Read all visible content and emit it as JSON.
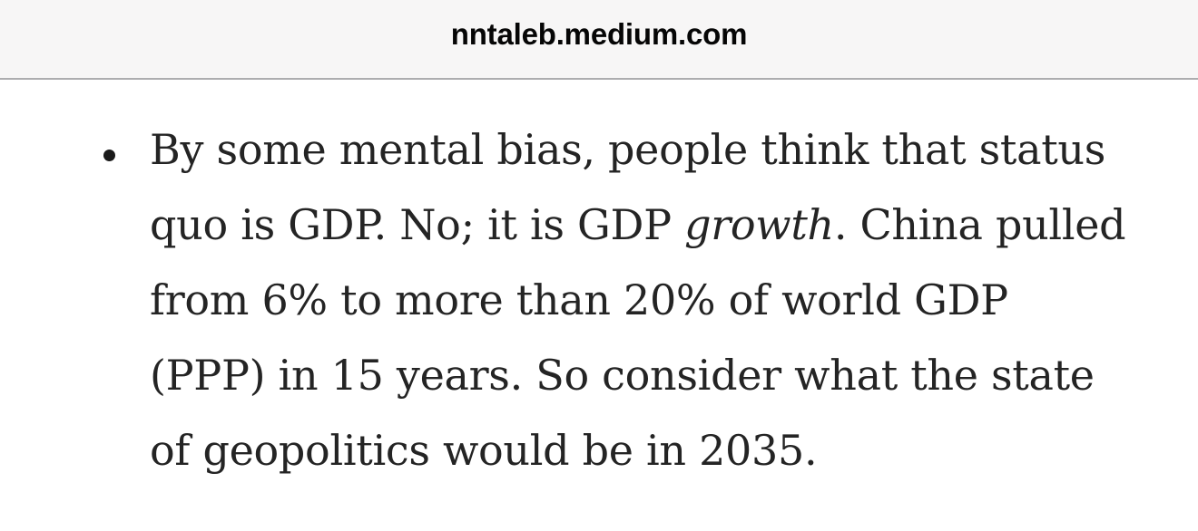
{
  "browser": {
    "url_bar": {
      "domain": "nntaleb.medium.com"
    }
  },
  "content": {
    "bullet_item": {
      "full_text": "By some mental bias, people think that status quo is GDP. No; it is GDP growth. China pulled from 6% to more than 20% of world GDP (PPP) in 15 years. So consider what the state of geopolitics would be in 2035.",
      "lines": [
        [
          {
            "text": "By some mental bias, people think that status"
          }
        ],
        [
          {
            "text": "quo is GDP. No; it is GDP "
          },
          {
            "text": "growth",
            "italic": true
          },
          {
            "text": ". China pulled"
          }
        ],
        [
          {
            "text": "from 6% to more than 20% of world GDP"
          }
        ],
        [
          {
            "text": "(PPP) in 15 years. So consider what the state"
          }
        ],
        [
          {
            "text": "of geopolitics would be in 2035."
          }
        ]
      ]
    }
  },
  "colors": {
    "page_bg": "#ffffff",
    "top_bar_bg": "#f7f6f6",
    "top_bar_border": "#adadaf",
    "url_text": "#060606",
    "body_text": "#242424",
    "bullet": "#1a1a1a"
  }
}
